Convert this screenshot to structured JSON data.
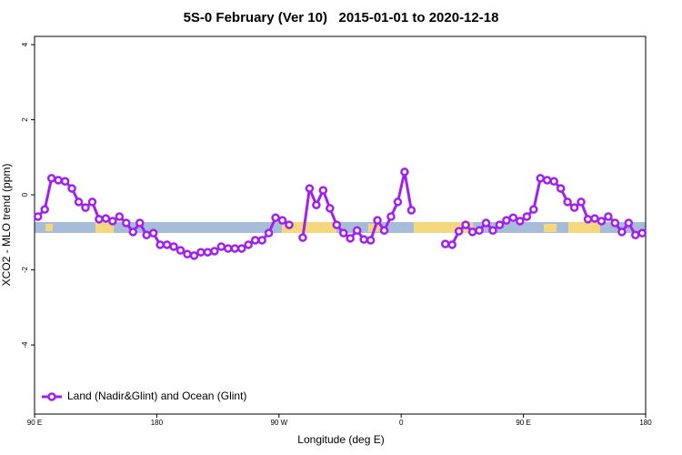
{
  "chart_data": {
    "type": "line",
    "title": "5S-0 February (Ver 10)   2015-01-01 to 2020-12-18",
    "xlabel": "Longitude (deg E)",
    "ylabel": "XCO2 - MLO trend (ppm)",
    "xlim": [
      90,
      540
    ],
    "xticks": [
      {
        "value": 90,
        "label": "90 E"
      },
      180,
      {
        "value": 270,
        "label": "90 W"
      },
      {
        "value": 360,
        "label": "0"
      },
      {
        "value": 450,
        "label": "90 E"
      },
      {
        "value": 540,
        "label": "180"
      }
    ],
    "ylim": [
      -5.84,
      4.22
    ],
    "yticks": [
      4,
      2,
      0,
      -2,
      -4
    ],
    "legend": "bottom-left",
    "x": [
      92.5,
      97.5,
      102.5,
      107.5,
      112.5,
      117.5,
      122.5,
      127.5,
      132.5,
      137.5,
      142.5,
      147.5,
      152.5,
      157.5,
      162.5,
      167.5,
      172.5,
      177.5,
      182.5,
      187.5,
      192.5,
      197.5,
      202.5,
      207.5,
      212.5,
      217.5,
      222.5,
      227.5,
      232.5,
      237.5,
      242.5,
      247.5,
      252.5,
      257.5,
      262.5,
      267.5,
      272.5,
      277.5,
      282.5,
      287.5,
      292.5,
      297.5,
      302.5,
      307.5,
      312.5,
      317.5,
      322.5,
      327.5,
      332.5,
      337.5,
      342.5,
      347.5,
      352.5,
      357.5,
      362.5,
      367.5,
      372.5,
      377.5,
      382.5,
      387.5,
      392.5,
      397.5,
      402.5,
      407.5,
      412.5,
      417.5,
      422.5,
      427.5,
      432.5,
      437.5,
      442.5,
      447.5,
      452.5,
      457.5,
      462.5,
      467.5,
      472.5,
      477.5,
      482.5,
      487.5,
      492.5,
      497.5,
      502.5,
      507.5,
      512.5,
      517.5,
      522.5,
      527.5,
      532.5,
      537.5
    ],
    "series": [
      {
        "name": "Land (Nadir&Glint) and Ocean (Glint)",
        "color": "#a020f0",
        "values": [
          -0.58,
          -0.39,
          0.44,
          0.39,
          0.36,
          0.17,
          -0.19,
          -0.34,
          -0.19,
          -0.65,
          -0.63,
          -0.7,
          -0.58,
          -0.75,
          -0.99,
          -0.75,
          -1.07,
          -1.02,
          -1.33,
          -1.33,
          -1.38,
          -1.48,
          -1.58,
          -1.62,
          -1.53,
          -1.53,
          -1.5,
          -1.38,
          -1.43,
          -1.43,
          -1.43,
          -1.33,
          -1.21,
          -1.21,
          -1.02,
          -0.61,
          -0.68,
          -0.8,
          null,
          -1.14,
          0.17,
          -0.27,
          0.12,
          -0.36,
          -0.8,
          -1.02,
          -1.16,
          -0.95,
          -1.19,
          -1.21,
          -0.68,
          -0.95,
          -0.58,
          -0.19,
          0.61,
          -0.41,
          null,
          null,
          null,
          null,
          -1.31,
          -1.33,
          -0.97,
          -0.8,
          -0.99,
          -0.95,
          -0.75,
          -0.95,
          -0.8,
          -0.68,
          -0.61,
          -0.7,
          -0.58,
          -0.39,
          0.44,
          0.39,
          0.36,
          0.17,
          -0.19,
          -0.34,
          -0.19,
          -0.65,
          -0.63,
          -0.7,
          -0.58,
          -0.75,
          -0.99,
          -0.75,
          -1.07,
          -1.02
        ]
      }
    ]
  }
}
